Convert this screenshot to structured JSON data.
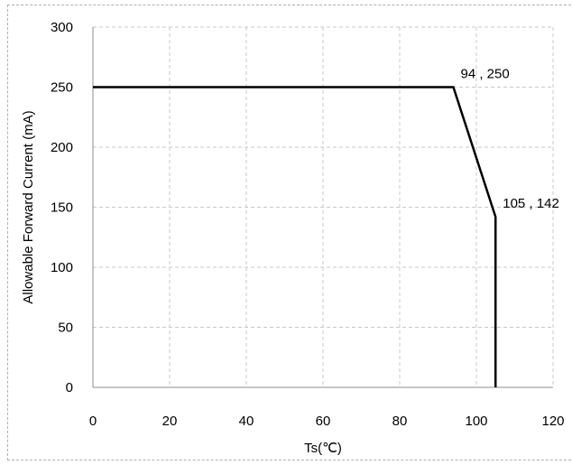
{
  "chart_data": {
    "type": "line",
    "title": "",
    "xlabel": "Ts(℃)",
    "ylabel": "Allowable Forward Current (mA)",
    "xlim": [
      0,
      120
    ],
    "ylim": [
      0,
      300
    ],
    "xticks": [
      0,
      20,
      40,
      60,
      80,
      100,
      120
    ],
    "yticks": [
      0,
      50,
      100,
      150,
      200,
      250,
      300
    ],
    "grid": true,
    "series": [
      {
        "x": [
          0,
          94,
          105,
          105
        ],
        "y": [
          250,
          250,
          142,
          0
        ],
        "color": "#000000"
      }
    ],
    "annotations": [
      {
        "text": "94 , 250",
        "x": 94,
        "y": 250
      },
      {
        "text": "105 , 142",
        "x": 105,
        "y": 142
      }
    ]
  }
}
